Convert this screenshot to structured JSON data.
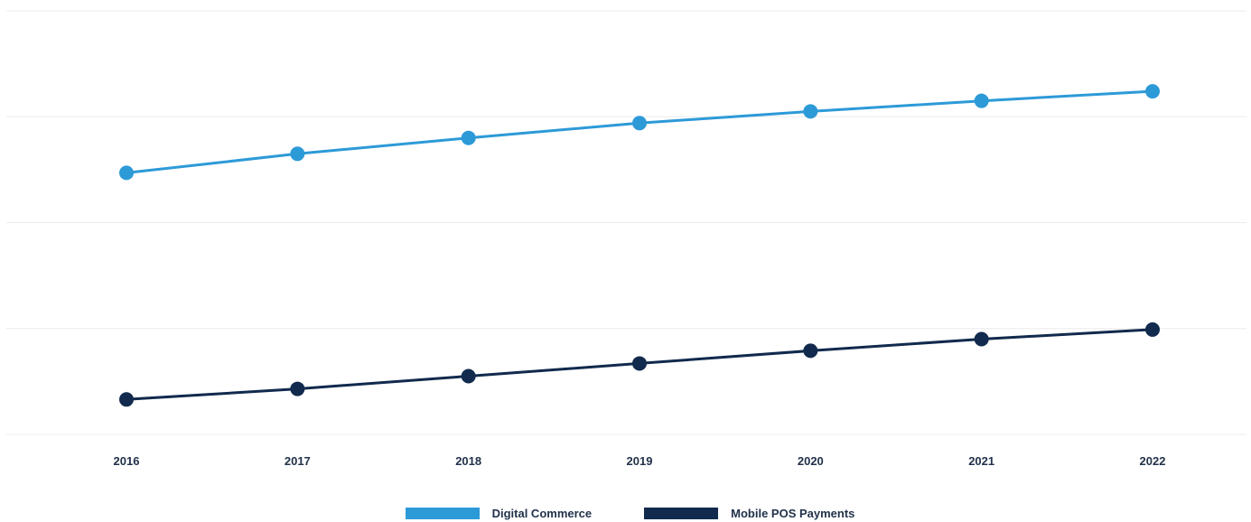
{
  "chart_data": {
    "type": "line",
    "categories": [
      "2016",
      "2017",
      "2018",
      "2019",
      "2020",
      "2021",
      "2022"
    ],
    "series": [
      {
        "name": "Digital Commerce",
        "color": "#2d9ad8",
        "values": [
          3.46,
          3.64,
          3.79,
          3.93,
          4.04,
          4.14,
          4.23
        ]
      },
      {
        "name": "Mobile POS Payments",
        "color": "#112a4d",
        "values": [
          1.32,
          1.42,
          1.54,
          1.66,
          1.78,
          1.89,
          1.98
        ]
      }
    ],
    "ylim": [
      0.99,
      4.99
    ],
    "grid": true,
    "y_tick_labels_shown": false,
    "legend_position": "bottom-center",
    "title": "",
    "xlabel": "",
    "ylabel": ""
  }
}
